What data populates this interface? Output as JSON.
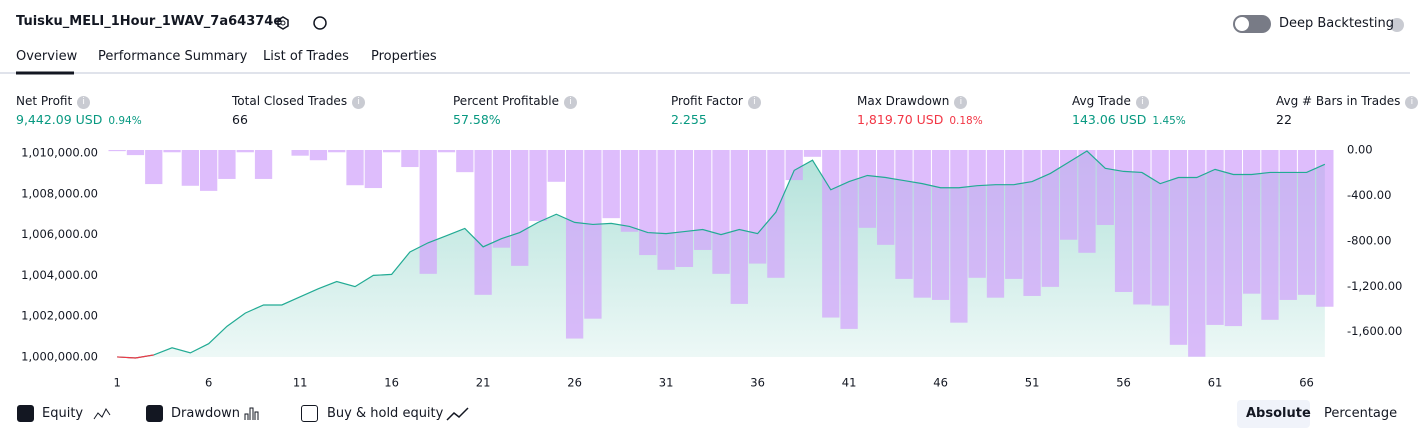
{
  "header": {
    "title": "Tuisku_MELI_1Hour_1WAV_7a64374e",
    "toggle_label": "Deep Backtesting"
  },
  "tabs": [
    "Overview",
    "Performance Summary",
    "List of Trades",
    "Properties"
  ],
  "metrics": [
    {
      "label": "Net Profit",
      "value": "9,442.09 USD",
      "percent": "0.94%"
    },
    {
      "label": "Total Closed Trades",
      "value": "66"
    },
    {
      "label": "Percent Profitable",
      "value": "57.58%"
    },
    {
      "label": "Profit Factor",
      "value": "2.255"
    },
    {
      "label": "Max Drawdown",
      "value": "1,819.70 USD",
      "percent": "0.18%"
    },
    {
      "label": "Avg Trade",
      "value": "143.06 USD",
      "percent": "1.45%"
    },
    {
      "label": "Avg # Bars in Trades",
      "value": "22"
    }
  ],
  "chart_data": {
    "type": "line",
    "x": [
      1,
      2,
      3,
      4,
      5,
      6,
      7,
      8,
      9,
      10,
      11,
      12,
      13,
      14,
      15,
      16,
      17,
      18,
      19,
      20,
      21,
      22,
      23,
      24,
      25,
      26,
      27,
      28,
      29,
      30,
      31,
      32,
      33,
      34,
      35,
      36,
      37,
      38,
      39,
      40,
      41,
      42,
      43,
      44,
      45,
      46,
      47,
      48,
      49,
      50,
      51,
      52,
      53,
      54,
      55,
      56,
      57,
      58,
      59,
      60,
      61,
      62,
      63,
      64,
      65,
      66,
      67
    ],
    "series": [
      {
        "name": "Equity",
        "color": "#22ab94",
        "negative_color": "#f23645",
        "values": [
          1000000,
          999950,
          1000100,
          1000450,
          1000200,
          1000650,
          1001500,
          1002150,
          1002550,
          1002550,
          1002950,
          1003350,
          1003700,
          1003450,
          1004000,
          1004050,
          1005150,
          1005600,
          1005950,
          1006300,
          1005400,
          1005800,
          1006100,
          1006600,
          1007000,
          1006600,
          1006500,
          1006550,
          1006400,
          1006100,
          1006050,
          1006150,
          1006250,
          1006000,
          1006250,
          1006050,
          1007100,
          1009150,
          1009650,
          1008200,
          1008600,
          1008900,
          1008800,
          1008650,
          1008500,
          1008300,
          1008300,
          1008400,
          1008450,
          1008450,
          1008600,
          1009000,
          1009550,
          1010100,
          1009250,
          1009100,
          1009050,
          1008500,
          1008800,
          1008800,
          1009200,
          1008950,
          1008950,
          1009050,
          1009050,
          1009050,
          1009450
        ]
      },
      {
        "name": "Drawdown",
        "color": "#d1a4fb",
        "axis": "y2",
        "type": "bar",
        "values": [
          -10,
          -45,
          -300,
          -20,
          -315,
          -360,
          -255,
          -20,
          -255,
          0,
          -50,
          -90,
          -20,
          -310,
          -335,
          -20,
          -150,
          -1090,
          -20,
          -195,
          -1275,
          -860,
          -1020,
          -625,
          -280,
          -1660,
          -1485,
          -600,
          -720,
          -925,
          -1055,
          -1030,
          -880,
          -1090,
          -1355,
          -1000,
          -1125,
          -265,
          -60,
          -1475,
          -1575,
          -685,
          -835,
          -1135,
          -1300,
          -1320,
          -1520,
          -1125,
          -1300,
          -1135,
          -1285,
          -1205,
          -790,
          -905,
          -660,
          -1250,
          -1360,
          -1370,
          -1715,
          -1820,
          -1540,
          -1550,
          -1265,
          -1495,
          -1320,
          -1275,
          -1380
        ]
      }
    ],
    "xlim": [
      0.5,
      67.5
    ],
    "xticks": [
      1,
      6,
      11,
      16,
      21,
      26,
      31,
      36,
      41,
      46,
      51,
      56,
      61,
      66
    ],
    "ylim": [
      999900,
      1010150
    ],
    "yticks": [
      {
        "value": 1000000,
        "label": "1,000,000.00"
      },
      {
        "value": 1002000,
        "label": "1,002,000.00"
      },
      {
        "value": 1004000,
        "label": "1,004,000.00"
      },
      {
        "value": 1006000,
        "label": "1,006,000.00"
      },
      {
        "value": 1008000,
        "label": "1,008,000.00"
      },
      {
        "value": 1010000,
        "label": "1,010,000.00"
      }
    ],
    "y2lim": [
      -1840,
      0
    ],
    "y2ticks": [
      {
        "value": 0,
        "label": "0.00"
      },
      {
        "value": -400,
        "label": "-400.00"
      },
      {
        "value": -800,
        "label": "-800.00"
      },
      {
        "value": -1200,
        "label": "-1,200.00"
      },
      {
        "value": -1600,
        "label": "-1,600.00"
      }
    ]
  },
  "footer": {
    "extra_legend": "Buy & hold equity",
    "buttons": [
      "Absolute",
      "Percentage"
    ]
  }
}
